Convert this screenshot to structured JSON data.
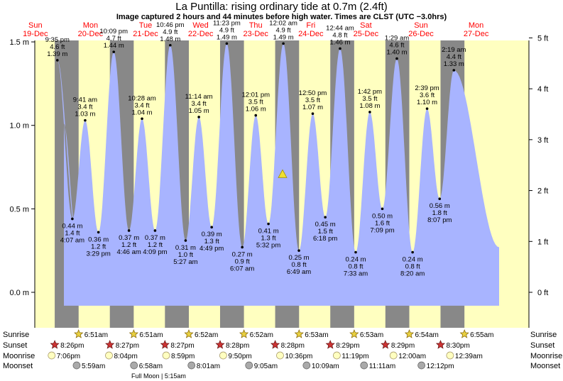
{
  "title": "La Puntilla: rising  ordinary tide at 0.7m (2.4ft)",
  "subtitle": "Image captured 2 hours and 44 minutes before high water. Times are CLST (UTC −3.0hrs)",
  "colors": {
    "day": "#ffffc0",
    "night": "#888888",
    "tide": "#a8b4ff",
    "day_label": "#ff0000",
    "star": "#e8d040",
    "sunset": "#cc3333",
    "moonrise": "#ffffc0",
    "moonset": "#aaaaaa"
  },
  "days": [
    {
      "weekday": "Sun",
      "date": "19-Dec"
    },
    {
      "weekday": "Mon",
      "date": "20-Dec"
    },
    {
      "weekday": "Tue",
      "date": "21-Dec"
    },
    {
      "weekday": "Wed",
      "date": "22-Dec"
    },
    {
      "weekday": "Thu",
      "date": "23-Dec"
    },
    {
      "weekday": "Fri",
      "date": "24-Dec"
    },
    {
      "weekday": "Sat",
      "date": "25-Dec"
    },
    {
      "weekday": "Sun",
      "date": "26-Dec"
    },
    {
      "weekday": "Mon",
      "date": "27-Dec"
    }
  ],
  "rows": {
    "sunrise_label": "Sunrise",
    "sunset_label": "Sunset",
    "moonrise_label": "Moonrise",
    "moonset_label": "Moonset",
    "sunrise": [
      "6:51am",
      "6:51am",
      "6:52am",
      "6:52am",
      "6:53am",
      "6:53am",
      "6:54am",
      "6:55am"
    ],
    "sunset": [
      "8:26pm",
      "8:27pm",
      "8:27pm",
      "8:28pm",
      "8:28pm",
      "8:29pm",
      "8:29pm",
      "8:30pm"
    ],
    "moonrise": [
      "7:06pm",
      "8:04pm",
      "8:59pm",
      "9:50pm",
      "10:36pm",
      "11:19pm",
      "12:00am",
      "12:39am"
    ],
    "moonset": [
      "5:59am",
      "6:58am",
      "8:01am",
      "9:05am",
      "10:09am",
      "11:11am",
      "12:12pm"
    ],
    "moon_phase": "Full Moon | 5:15am"
  },
  "chart_data": {
    "type": "area",
    "title": "La Puntilla: rising  ordinary tide at 0.7m (2.4ft)",
    "ylabel_left_unit": "m",
    "ylabel_right_unit": "ft",
    "ylim": [
      -0.08,
      1.52
    ],
    "y_ticks_m": [
      "0.0 m",
      "0.5 m",
      "1.0 m",
      "1.5 m"
    ],
    "y_ticks_ft": [
      "0 ft",
      "1 ft",
      "2 ft",
      "3 ft",
      "4 ft",
      "5 ft"
    ],
    "current": {
      "time": "Thu 23-Dec",
      "height_m": 0.7,
      "height_ft": 2.4
    },
    "extremes": [
      {
        "day": "Sun 19-Dec",
        "time": "9:35 pm",
        "type": "high",
        "ft": "4.6 ft",
        "m": "1.39 m",
        "value": 1.39
      },
      {
        "day": "Mon 20-Dec",
        "time": "4:07 am",
        "type": "low",
        "ft": "1.4 ft",
        "m": "0.44 m",
        "value": 0.44
      },
      {
        "day": "Mon 20-Dec",
        "time": "9:41 am",
        "type": "high",
        "ft": "3.4 ft",
        "m": "1.03 m",
        "value": 1.03
      },
      {
        "day": "Mon 20-Dec",
        "time": "3:29 pm",
        "type": "low",
        "ft": "1.2 ft",
        "m": "0.36 m",
        "value": 0.36
      },
      {
        "day": "Mon 20-Dec",
        "time": "10:09 pm",
        "type": "high",
        "ft": "4.7 ft",
        "m": "1.44 m",
        "value": 1.44
      },
      {
        "day": "Tue 21-Dec",
        "time": "4:46 am",
        "type": "low",
        "ft": "1.2 ft",
        "m": "0.37 m",
        "value": 0.37
      },
      {
        "day": "Tue 21-Dec",
        "time": "10:28 am",
        "type": "high",
        "ft": "3.4 ft",
        "m": "1.04 m",
        "value": 1.04
      },
      {
        "day": "Tue 21-Dec",
        "time": "4:09 pm",
        "type": "low",
        "ft": "1.2 ft",
        "m": "0.37 m",
        "value": 0.37
      },
      {
        "day": "Tue 21-Dec",
        "time": "10:46 pm",
        "type": "high",
        "ft": "4.9 ft",
        "m": "1.48 m",
        "value": 1.48
      },
      {
        "day": "Wed 22-Dec",
        "time": "5:27 am",
        "type": "low",
        "ft": "1.0 ft",
        "m": "0.31 m",
        "value": 0.31
      },
      {
        "day": "Wed 22-Dec",
        "time": "11:14 am",
        "type": "high",
        "ft": "3.4 ft",
        "m": "1.05 m",
        "value": 1.05
      },
      {
        "day": "Wed 22-Dec",
        "time": "4:49 pm",
        "type": "low",
        "ft": "1.3 ft",
        "m": "0.39 m",
        "value": 0.39
      },
      {
        "day": "Wed 22-Dec",
        "time": "11:23 pm",
        "type": "high",
        "ft": "4.9 ft",
        "m": "1.49 m",
        "value": 1.49
      },
      {
        "day": "Thu 23-Dec",
        "time": "6:07 am",
        "type": "low",
        "ft": "0.9 ft",
        "m": "0.27 m",
        "value": 0.27
      },
      {
        "day": "Thu 23-Dec",
        "time": "12:01 pm",
        "type": "high",
        "ft": "3.5 ft",
        "m": "1.06 m",
        "value": 1.06
      },
      {
        "day": "Thu 23-Dec",
        "time": "5:32 pm",
        "type": "low",
        "ft": "1.3 ft",
        "m": "0.41 m",
        "value": 0.41
      },
      {
        "day": "Fri 24-Dec",
        "time": "12:02 am",
        "type": "high",
        "ft": "4.9 ft",
        "m": "1.49 m",
        "value": 1.49
      },
      {
        "day": "Fri 24-Dec",
        "time": "6:49 am",
        "type": "low",
        "ft": "0.8 ft",
        "m": "0.25 m",
        "value": 0.25
      },
      {
        "day": "Fri 24-Dec",
        "time": "12:50 pm",
        "type": "high",
        "ft": "3.5 ft",
        "m": "1.07 m",
        "value": 1.07
      },
      {
        "day": "Fri 24-Dec",
        "time": "6:18 pm",
        "type": "low",
        "ft": "1.5 ft",
        "m": "0.45 m",
        "value": 0.45
      },
      {
        "day": "Sat 25-Dec",
        "time": "12:44 am",
        "type": "high",
        "ft": "4.8 ft",
        "m": "1.46 m",
        "value": 1.46
      },
      {
        "day": "Sat 25-Dec",
        "time": "7:33 am",
        "type": "low",
        "ft": "0.8 ft",
        "m": "0.24 m",
        "value": 0.24
      },
      {
        "day": "Sat 25-Dec",
        "time": "1:42 pm",
        "type": "high",
        "ft": "3.5 ft",
        "m": "1.08 m",
        "value": 1.08
      },
      {
        "day": "Sat 25-Dec",
        "time": "7:09 pm",
        "type": "low",
        "ft": "1.6 ft",
        "m": "0.50 m",
        "value": 0.5
      },
      {
        "day": "Sun 26-Dec",
        "time": "1:29 am",
        "type": "high",
        "ft": "4.6 ft",
        "m": "1.40 m",
        "value": 1.4
      },
      {
        "day": "Sun 26-Dec",
        "time": "8:20 am",
        "type": "low",
        "ft": "0.8 ft",
        "m": "0.24 m",
        "value": 0.24
      },
      {
        "day": "Sun 26-Dec",
        "time": "2:39 pm",
        "type": "high",
        "ft": "3.6 ft",
        "m": "1.10 m",
        "value": 1.1
      },
      {
        "day": "Sun 26-Dec",
        "time": "8:07 pm",
        "type": "low",
        "ft": "1.8 ft",
        "m": "0.56 m",
        "value": 0.56
      },
      {
        "day": "Mon 27-Dec",
        "time": "2:19 am",
        "type": "high",
        "ft": "4.4 ft",
        "m": "1.33 m",
        "value": 1.33
      }
    ]
  }
}
